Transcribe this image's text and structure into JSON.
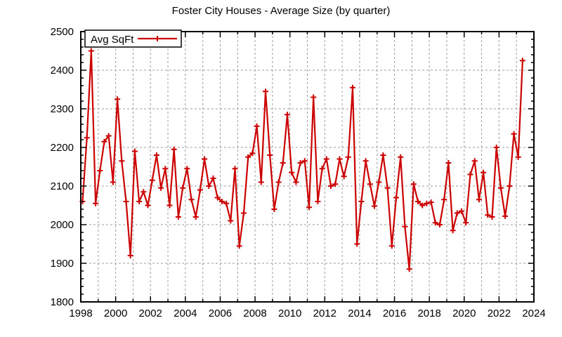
{
  "title": "Foster City Houses - Average Size (by quarter)",
  "legend": {
    "label": "Avg SqFt"
  },
  "colors": {
    "line": "#cc0000",
    "grid": "#9e9e9e",
    "border": "#000000",
    "background": "#ffffff",
    "text": "#000000"
  },
  "chart_data": {
    "type": "line",
    "title": "Foster City Houses - Average Size (by quarter)",
    "series_name": "Avg SqFt",
    "marker": "plus",
    "grid": true,
    "legend_position": "top-left",
    "xlabel": "",
    "ylabel": "",
    "xlim": [
      1998,
      2024
    ],
    "ylim": [
      1800,
      2500
    ],
    "x_ticks_major": [
      1998,
      2000,
      2002,
      2004,
      2006,
      2008,
      2010,
      2012,
      2014,
      2016,
      2018,
      2020,
      2022,
      2024
    ],
    "x_tick_labels": [
      "1998",
      "2000",
      "2002",
      "2004",
      "2006",
      "2008",
      "2010",
      "2012",
      "2014",
      "2016",
      "2018",
      "2020",
      "2022",
      "2024"
    ],
    "x_minor_step": 1,
    "y_ticks_major": [
      1800,
      1900,
      2000,
      2100,
      2200,
      2300,
      2400,
      2500
    ],
    "y_tick_labels": [
      "1800",
      "1900",
      "2000",
      "2100",
      "2200",
      "2300",
      "2400",
      "2500"
    ],
    "y_minor_step": 20,
    "x_start": 1998.1,
    "x_step": 0.25,
    "first_quarter": "1998Q1",
    "last_quarter": "2023Q2",
    "values": [
      2060,
      2225,
      2450,
      2055,
      2140,
      2215,
      2230,
      2110,
      2325,
      2165,
      2060,
      1920,
      2190,
      2060,
      2085,
      2050,
      2115,
      2180,
      2095,
      2145,
      2050,
      2195,
      2020,
      2095,
      2145,
      2065,
      2020,
      2090,
      2170,
      2100,
      2120,
      2070,
      2060,
      2055,
      2010,
      2145,
      1945,
      2030,
      2175,
      2185,
      2255,
      2110,
      2345,
      2180,
      2040,
      2110,
      2160,
      2285,
      2135,
      2110,
      2160,
      2165,
      2045,
      2330,
      2060,
      2145,
      2170,
      2100,
      2105,
      2170,
      2125,
      2175,
      2355,
      1950,
      2060,
      2165,
      2105,
      2048,
      2110,
      2180,
      2095,
      1945,
      2070,
      2175,
      1995,
      1885,
      2105,
      2060,
      2050,
      2055,
      2058,
      2005,
      2000,
      2065,
      2160,
      1985,
      2030,
      2035,
      2005,
      2130,
      2165,
      2065,
      2135,
      2025,
      2020,
      2200,
      2095,
      2022,
      2100,
      2235,
      2175,
      2425
    ]
  }
}
